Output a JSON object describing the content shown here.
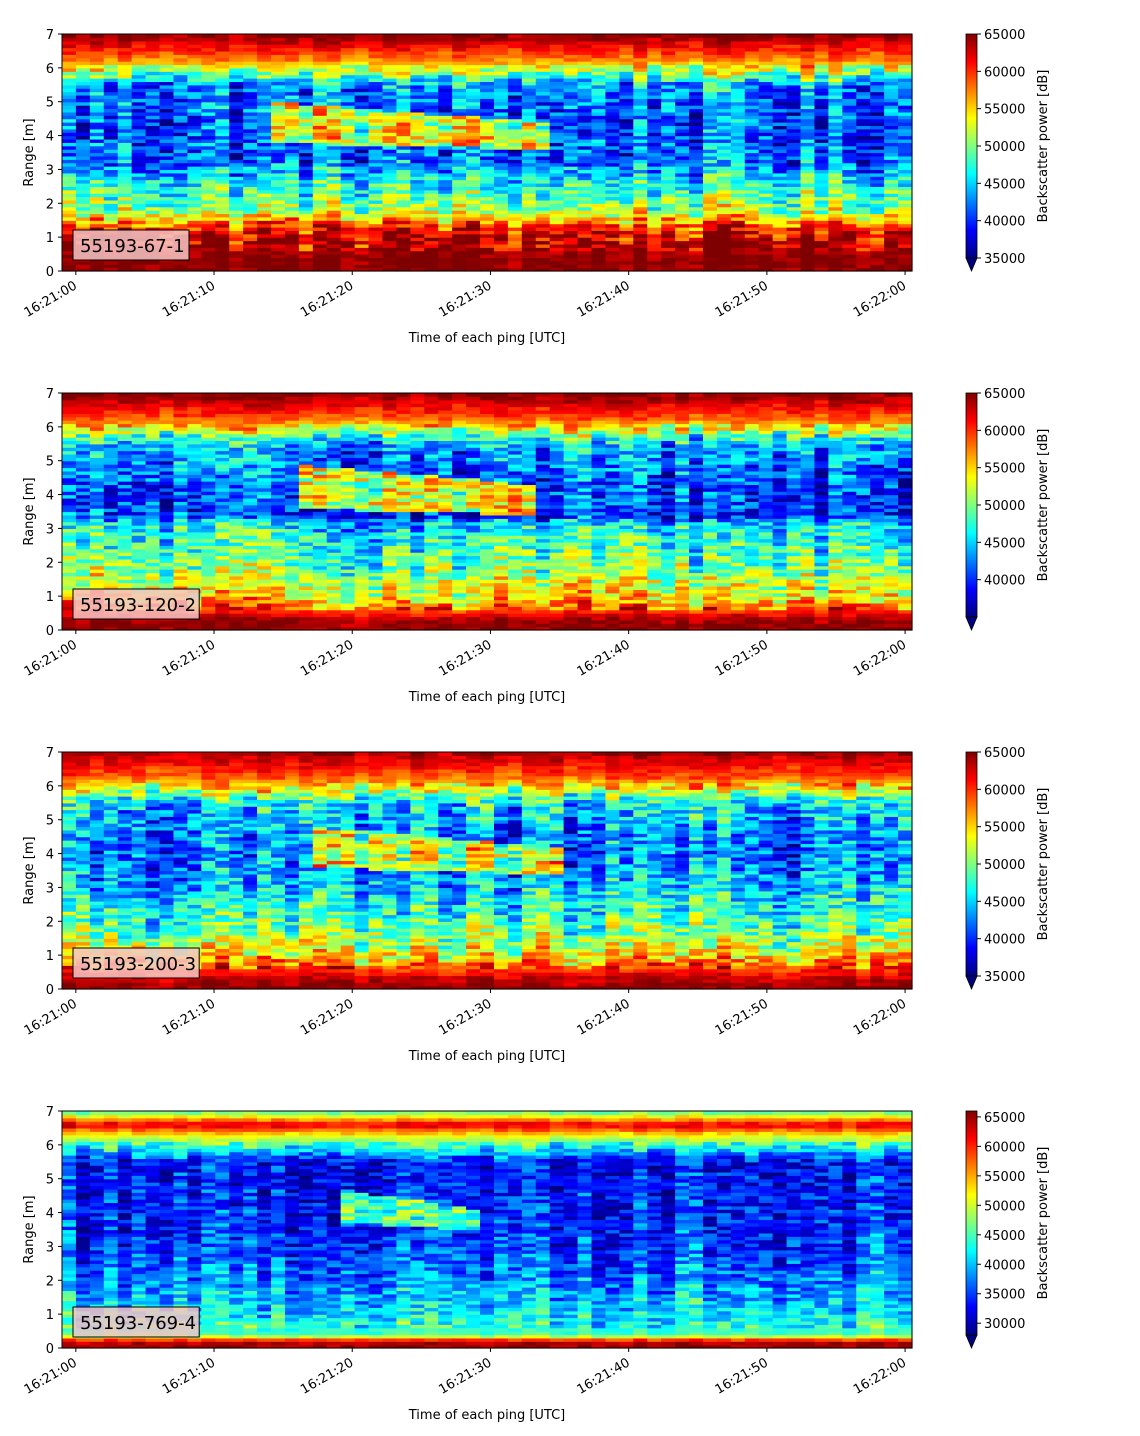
{
  "colors": {
    "jet": [
      "#00007f",
      "#0000ff",
      "#007fff",
      "#00ffff",
      "#7fff7f",
      "#ffff00",
      "#ff7f00",
      "#ff0000",
      "#7f0000"
    ],
    "label_box_bg": "#f5c6c6",
    "frame": "#000000"
  },
  "shared": {
    "xlabel": "Time of each ping [UTC]",
    "ylabel": "Range [m]",
    "colorbar_label": "Backscatter power [dB]",
    "x_tick_labels": [
      "16:21:00",
      "16:21:10",
      "16:21:20",
      "16:21:30",
      "16:21:40",
      "16:21:50",
      "16:22:00"
    ],
    "y_tick_labels": [
      "0",
      "1",
      "2",
      "3",
      "4",
      "5",
      "6",
      "7"
    ]
  },
  "chart_data": [
    {
      "type": "heatmap",
      "label": "55193-67-1",
      "xlabel": "Time of each ping [UTC]",
      "ylabel": "Range [m]",
      "x_range": [
        "16:20:59",
        "16:22:00"
      ],
      "ylim": [
        0,
        7
      ],
      "colorbar": {
        "label": "Backscatter power [dB]",
        "min": 35000,
        "max": 65000,
        "ticks": [
          35000,
          40000,
          45000,
          50000,
          55000,
          60000,
          65000
        ],
        "extend": "min"
      },
      "colormap": "jet",
      "profile": {
        "ranges_m": [
          0,
          0.3,
          1.2,
          1.8,
          2.6,
          3.2,
          4.2,
          5.5,
          6.2,
          7.0
        ],
        "values": [
          65000,
          65000,
          62000,
          51000,
          47000,
          42000,
          41000,
          43000,
          57000,
          65000
        ]
      },
      "feature": {
        "description": "elevated scatter",
        "t_start_s": 14,
        "t_end_s": 34,
        "range_min_m": 3.8,
        "range_max_m": 5.0,
        "peak_value": 56000
      }
    },
    {
      "type": "heatmap",
      "label": "55193-120-2",
      "xlabel": "Time of each ping [UTC]",
      "ylabel": "Range [m]",
      "x_range": [
        "16:20:59",
        "16:22:00"
      ],
      "ylim": [
        0,
        7
      ],
      "colorbar": {
        "label": "Backscatter power [dB]",
        "min": 35000,
        "max": 65000,
        "ticks": [
          40000,
          45000,
          50000,
          55000,
          60000,
          65000
        ],
        "extend": "min"
      },
      "colormap": "jet",
      "profile": {
        "ranges_m": [
          0,
          0.3,
          0.9,
          1.8,
          2.6,
          3.2,
          3.35,
          4.2,
          5.5,
          6.2,
          7.0
        ],
        "values": [
          65000,
          64000,
          55000,
          50000,
          47000,
          45000,
          40000,
          40000,
          44000,
          58000,
          65000
        ]
      },
      "feature": {
        "description": "elevated scatter",
        "t_start_s": 16,
        "t_end_s": 33,
        "range_min_m": 3.6,
        "range_max_m": 4.9,
        "peak_value": 57000
      }
    },
    {
      "type": "heatmap",
      "label": "55193-200-3",
      "xlabel": "Time of each ping [UTC]",
      "ylabel": "Range [m]",
      "x_range": [
        "16:20:59",
        "16:22:00"
      ],
      "ylim": [
        0,
        7
      ],
      "colorbar": {
        "label": "Backscatter power [dB]",
        "min": 35000,
        "max": 65000,
        "ticks": [
          35000,
          40000,
          45000,
          50000,
          55000,
          60000,
          65000
        ],
        "extend": "min"
      },
      "colormap": "jet",
      "profile": {
        "ranges_m": [
          0,
          0.4,
          1.0,
          1.8,
          2.6,
          3.4,
          4.2,
          5.5,
          6.2,
          7.0
        ],
        "values": [
          65000,
          62000,
          54000,
          49000,
          46000,
          43000,
          42000,
          45000,
          58000,
          64000
        ]
      },
      "feature": {
        "description": "elevated scatter",
        "t_start_s": 17,
        "t_end_s": 35,
        "range_min_m": 3.6,
        "range_max_m": 4.8,
        "peak_value": 55000
      }
    },
    {
      "type": "heatmap",
      "label": "55193-769-4",
      "xlabel": "Time of each ping [UTC]",
      "ylabel": "Range [m]",
      "x_range": [
        "16:20:59",
        "16:22:00"
      ],
      "ylim": [
        0,
        7
      ],
      "colorbar": {
        "label": "Backscatter power [dB]",
        "min": 28000,
        "max": 66000,
        "ticks": [
          30000,
          35000,
          40000,
          45000,
          50000,
          55000,
          60000,
          65000
        ],
        "extend": "min"
      },
      "colormap": "jet",
      "profile": {
        "ranges_m": [
          0,
          0.2,
          0.4,
          1.0,
          2.0,
          3.0,
          4.2,
          5.5,
          6.3,
          6.6,
          7.0
        ],
        "values": [
          65000,
          64000,
          45000,
          42000,
          38000,
          35000,
          34000,
          33000,
          52000,
          63000,
          45000
        ]
      },
      "feature": {
        "description": "elevated scatter",
        "t_start_s": 19,
        "t_end_s": 29,
        "range_min_m": 3.7,
        "range_max_m": 4.7,
        "peak_value": 48000
      }
    }
  ]
}
